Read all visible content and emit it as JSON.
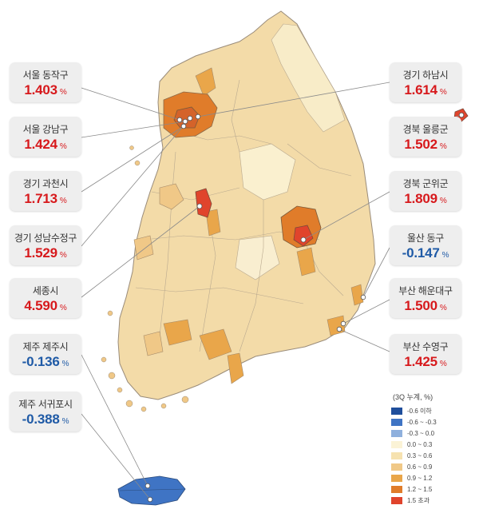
{
  "callouts": [
    {
      "id": "seoul-dongjak",
      "name": "서울 동작구",
      "value": "1.403",
      "unit": "%",
      "tone": "pos"
    },
    {
      "id": "seoul-gangnam",
      "name": "서울 강남구",
      "value": "1.424",
      "unit": "%",
      "tone": "pos"
    },
    {
      "id": "gyeonggi-gwacheon",
      "name": "경기 과천시",
      "value": "1.713",
      "unit": "%",
      "tone": "pos"
    },
    {
      "id": "gyeonggi-seongnam-sujeong",
      "name": "경기 성남수정구",
      "value": "1.529",
      "unit": "%",
      "tone": "pos"
    },
    {
      "id": "sejong",
      "name": "세종시",
      "value": "4.590",
      "unit": "%",
      "tone": "pos"
    },
    {
      "id": "jeju-jeju",
      "name": "제주 제주시",
      "value": "-0.136",
      "unit": "%",
      "tone": "neg"
    },
    {
      "id": "jeju-seogwipo",
      "name": "제주 서귀포시",
      "value": "-0.388",
      "unit": "%",
      "tone": "neg"
    },
    {
      "id": "gyeonggi-hanam",
      "name": "경기 하남시",
      "value": "1.614",
      "unit": "%",
      "tone": "pos"
    },
    {
      "id": "gyeongbuk-ulleung",
      "name": "경북 울릉군",
      "value": "1.502",
      "unit": "%",
      "tone": "pos"
    },
    {
      "id": "gyeongbuk-gunwi",
      "name": "경북 군위군",
      "value": "1.809",
      "unit": "%",
      "tone": "pos"
    },
    {
      "id": "ulsan-dong",
      "name": "울산 동구",
      "value": "-0.147",
      "unit": "%",
      "tone": "neg"
    },
    {
      "id": "busan-haeundae",
      "name": "부산 해운대구",
      "value": "1.500",
      "unit": "%",
      "tone": "pos"
    },
    {
      "id": "busan-suyeong",
      "name": "부산 수영구",
      "value": "1.425",
      "unit": "%",
      "tone": "pos"
    }
  ],
  "tone_colors": {
    "pos": "#d7191c",
    "neg": "#1f5aa6"
  },
  "legend": {
    "title": "(3Q 누계, %)",
    "items": [
      {
        "label": "-0.6 이하",
        "color": "#1f4e9c"
      },
      {
        "label": "-0.6 ~ -0.3",
        "color": "#3f74c4"
      },
      {
        "label": "-0.3 ~ 0.0",
        "color": "#8fb0dd"
      },
      {
        "label": "0.0 ~ 0.3",
        "color": "#fbf3d6"
      },
      {
        "label": "0.3 ~ 0.6",
        "color": "#f6e2b0"
      },
      {
        "label": "0.6 ~ 0.9",
        "color": "#f0c887"
      },
      {
        "label": "0.9 ~ 1.2",
        "color": "#e9a64a"
      },
      {
        "label": "1.2 ~ 1.5",
        "color": "#e07c2a"
      },
      {
        "label": "1.5 초과",
        "color": "#e0442c"
      }
    ]
  }
}
